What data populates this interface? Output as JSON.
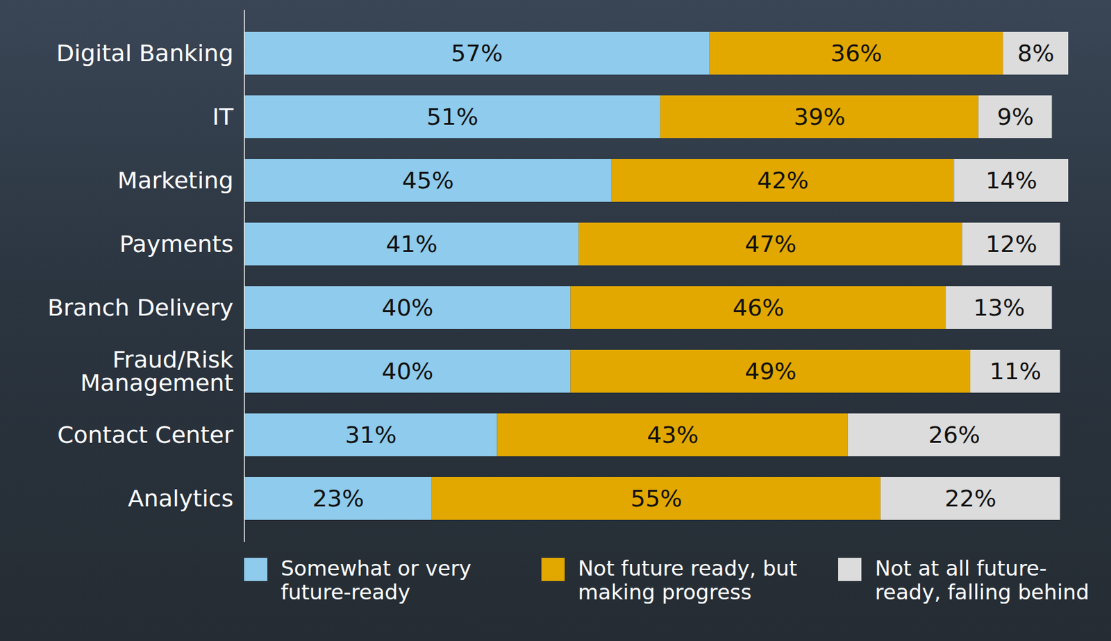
{
  "chart_data": {
    "type": "bar",
    "orientation": "horizontal",
    "stacked": true,
    "data_labels": true,
    "tick_labels": false,
    "legend": "bottom",
    "xlim": [
      0,
      101
    ],
    "categories": [
      "Digital Banking",
      "IT",
      "Marketing",
      "Payments",
      "Branch Delivery",
      "Fraud/Risk Management",
      "Contact Center",
      "Analytics"
    ],
    "series": [
      {
        "name": "Somewhat or very future-ready",
        "color": "#8fcbec",
        "values": [
          57,
          51,
          45,
          41,
          40,
          40,
          31,
          23
        ],
        "value_labels": [
          "57%",
          "51%",
          "45%",
          "41%",
          "40%",
          "40%",
          "31%",
          "23%"
        ]
      },
      {
        "name": "Not future ready, but making progress",
        "color": "#e2a800",
        "values": [
          36,
          39,
          42,
          47,
          46,
          49,
          43,
          55
        ],
        "value_labels": [
          "36%",
          "39%",
          "42%",
          "47%",
          "46%",
          "49%",
          "43%",
          "55%"
        ]
      },
      {
        "name": "Not at all future-ready, falling behind",
        "color": "#dcdcdc",
        "values": [
          8,
          9,
          14,
          12,
          13,
          11,
          26,
          22
        ],
        "value_labels": [
          "8%",
          "9%",
          "14%",
          "12%",
          "13%",
          "11%",
          "26%",
          "22%"
        ]
      }
    ]
  }
}
